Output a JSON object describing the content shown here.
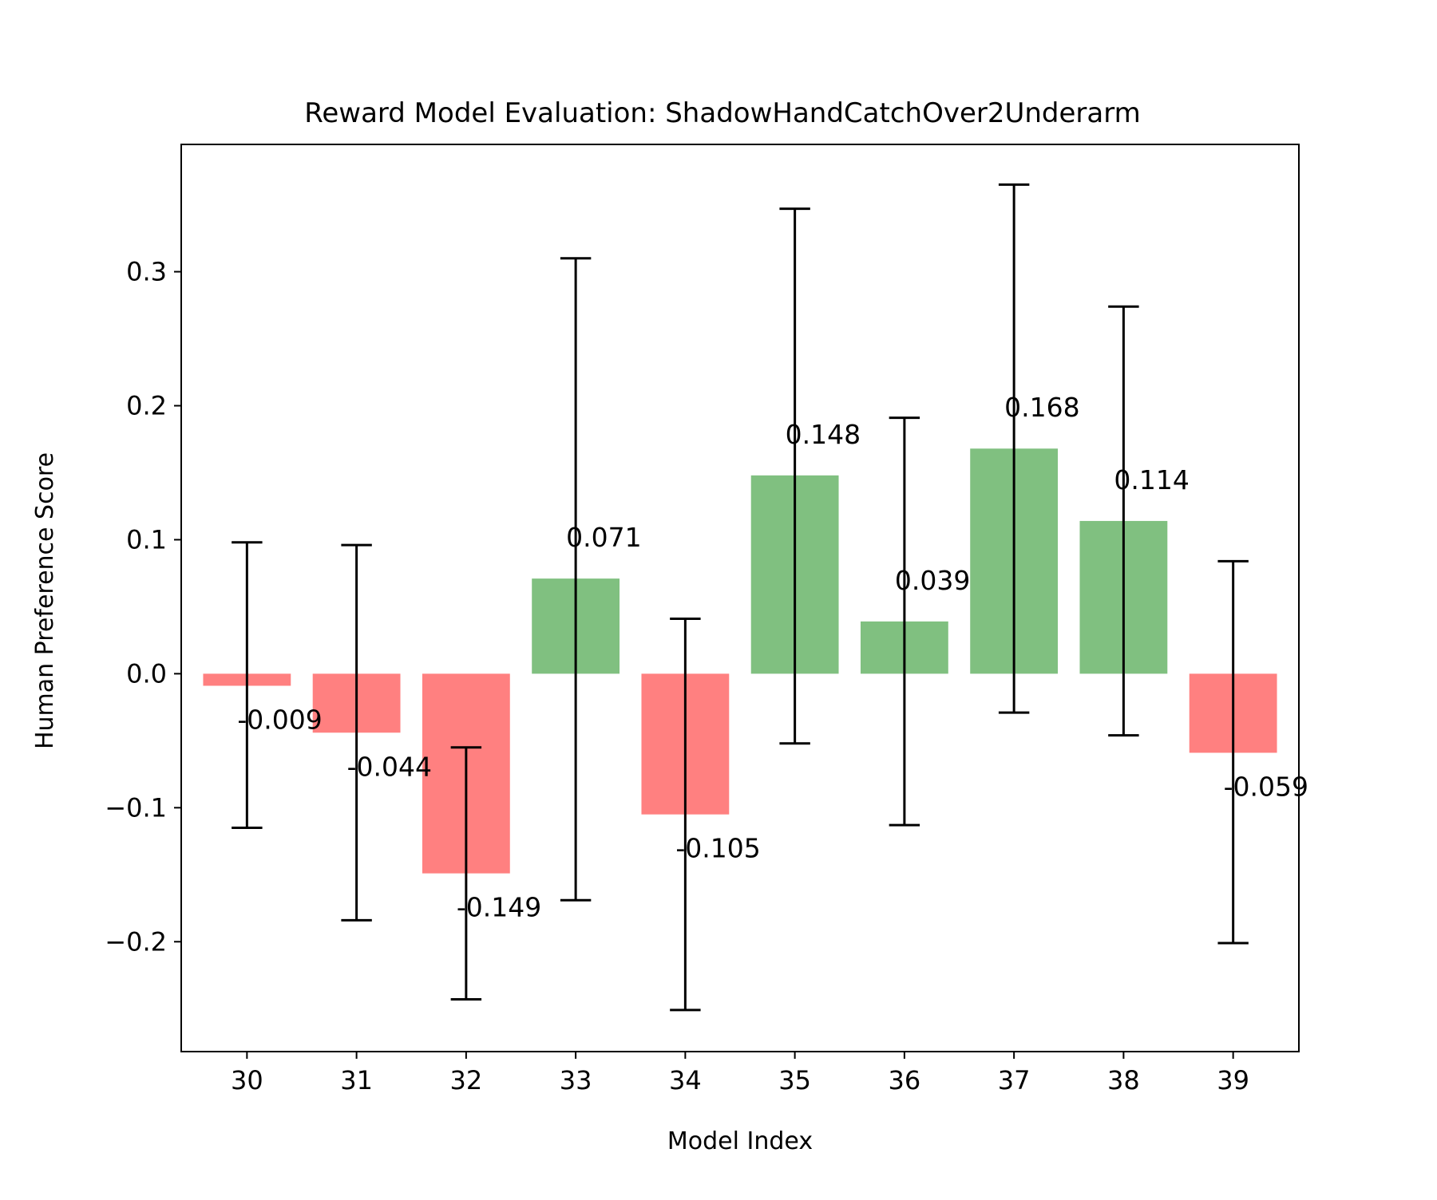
{
  "chart_data": {
    "type": "bar",
    "title": "Reward Model Evaluation: ShadowHandCatchOver2Underarm",
    "xlabel": "Model Index",
    "ylabel": "Human Preference Score",
    "categories": [
      "30",
      "31",
      "32",
      "33",
      "34",
      "35",
      "36",
      "37",
      "38",
      "39"
    ],
    "values": [
      -0.009,
      -0.044,
      -0.149,
      0.071,
      -0.105,
      0.148,
      0.039,
      0.168,
      0.114,
      -0.059
    ],
    "value_labels": [
      "-0.009",
      "-0.044",
      "-0.149",
      "0.071",
      "-0.105",
      "0.148",
      "0.039",
      "0.168",
      "0.114",
      "-0.059"
    ],
    "error_low": [
      -0.115,
      -0.184,
      -0.243,
      -0.169,
      -0.251,
      -0.052,
      -0.113,
      -0.029,
      -0.046,
      -0.201
    ],
    "error_high": [
      0.098,
      0.096,
      -0.055,
      0.31,
      0.041,
      0.347,
      0.191,
      0.365,
      0.274,
      0.084
    ],
    "ylim": [
      -0.282,
      0.395
    ],
    "yticks": [
      -0.2,
      -0.1,
      0.0,
      0.1,
      0.2,
      0.3
    ],
    "ytick_labels": [
      "−0.2",
      "−0.1",
      "0.0",
      "0.1",
      "0.2",
      "0.3"
    ],
    "grid": false,
    "legend": "none",
    "colors": {
      "positive": "#80c080",
      "negative": "#ff8080",
      "errorbar": "#000000"
    }
  }
}
